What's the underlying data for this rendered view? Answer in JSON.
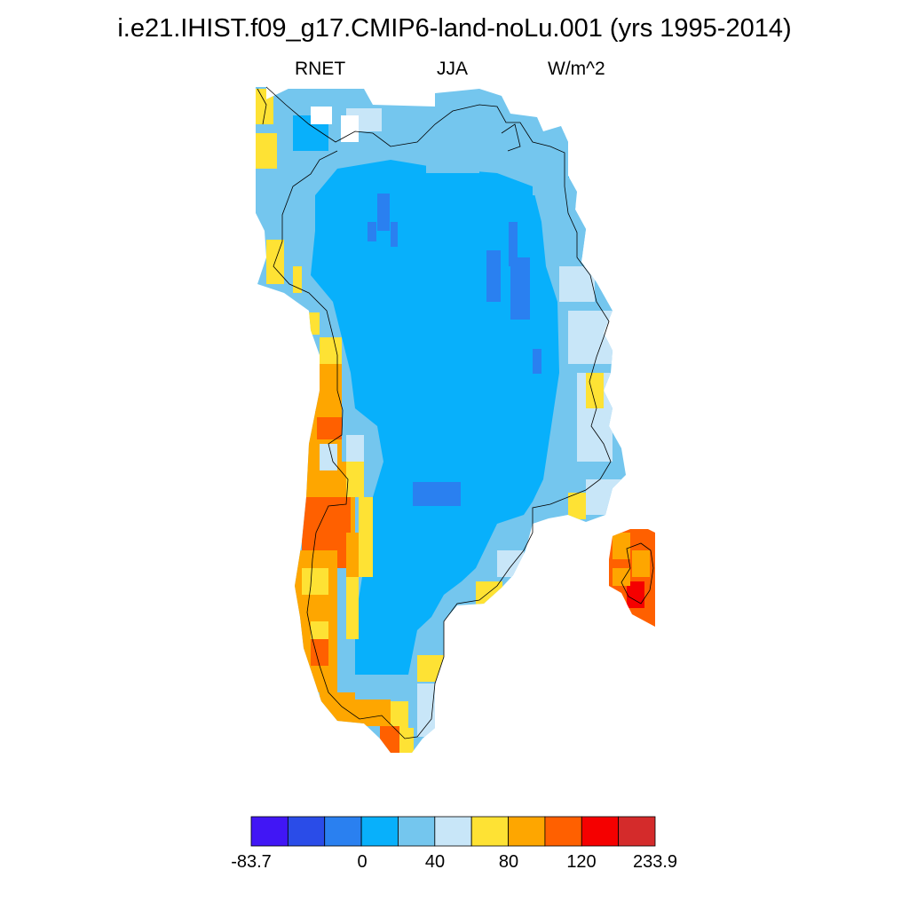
{
  "title": "i.e21.IHIST.f09_g17.CMIP6-land-noLu.001 (yrs 1995-2014)",
  "subtitle": {
    "variable": "RNET",
    "season": "JJA",
    "units": "W/m^2"
  },
  "colorbar": {
    "colors": [
      "#4116f5",
      "#2a4ce8",
      "#2a80f0",
      "#08b0fb",
      "#74c6ee",
      "#c8e6f8",
      "#fee234",
      "#fea600",
      "#ff6000",
      "#f50000",
      "#d42b2b"
    ],
    "labels": [
      "-83.7",
      "0",
      "40",
      "80",
      "120",
      "233.9"
    ]
  }
}
